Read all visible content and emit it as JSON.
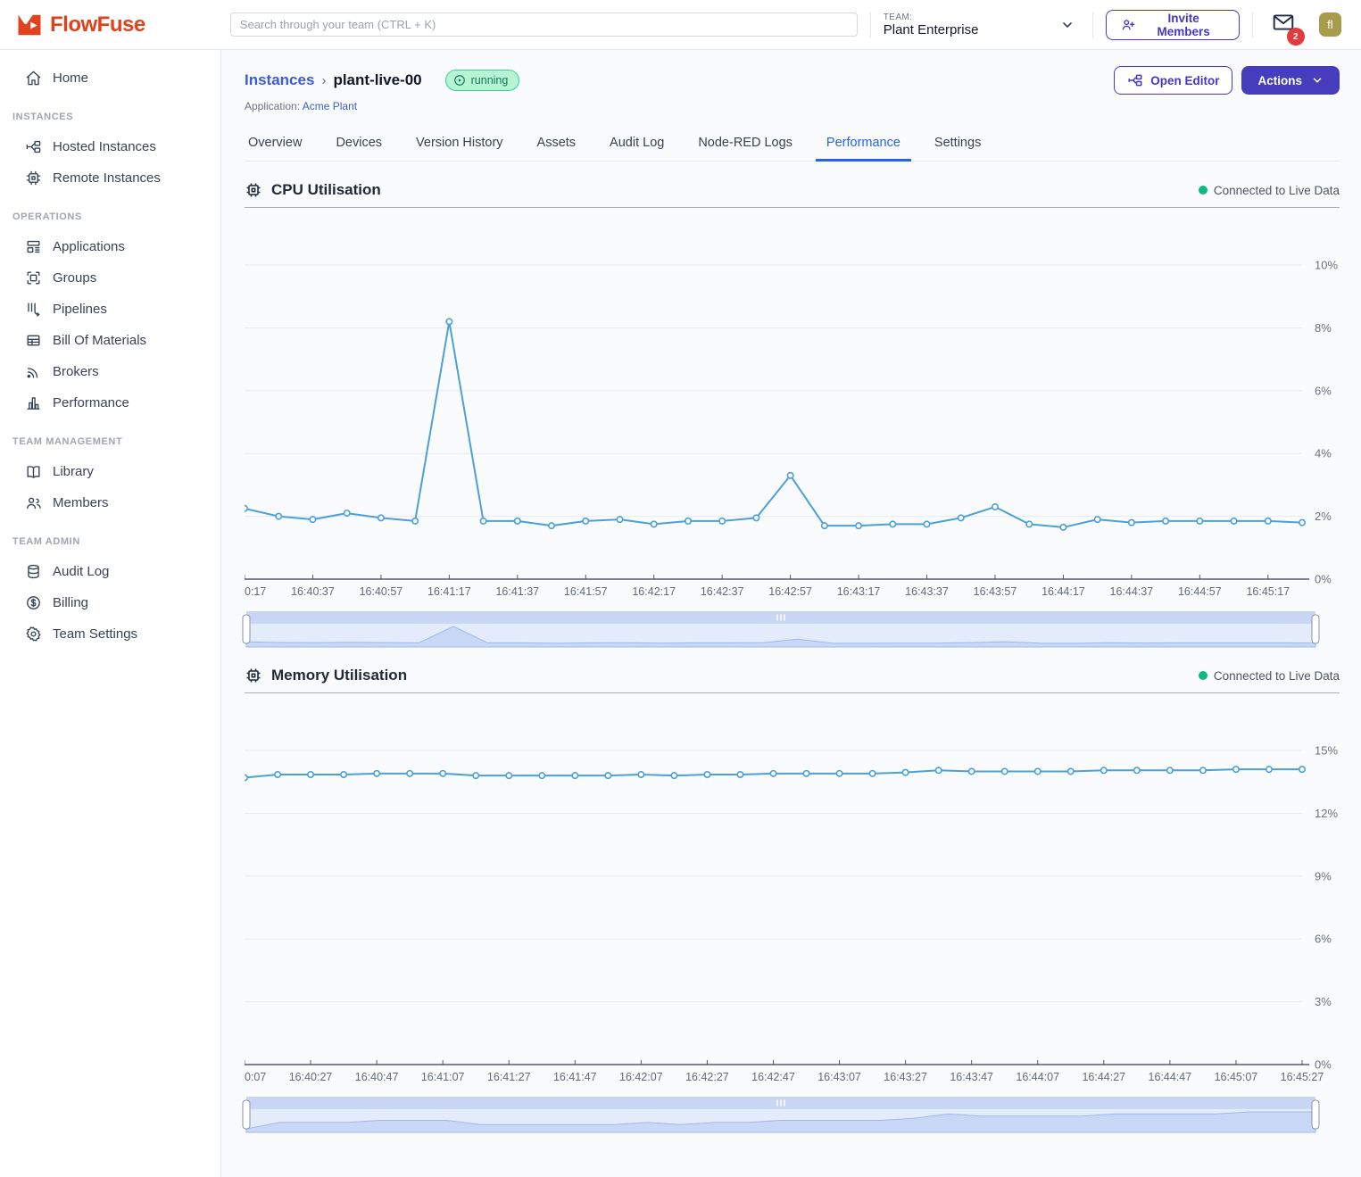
{
  "header": {
    "logo_text": "FlowFuse",
    "search": {
      "placeholder": "Search through your team (CTRL + K)"
    },
    "team": {
      "label": "TEAM:",
      "name": "Plant Enterprise"
    },
    "invite_button_label": "Invite Members",
    "notification_count": "2",
    "avatar_initials": "fl"
  },
  "sidebar": {
    "sections": [
      {
        "label": "",
        "items": [
          {
            "icon": "home",
            "label": "Home"
          }
        ]
      },
      {
        "label": "INSTANCES",
        "items": [
          {
            "icon": "hosted-instances",
            "label": "Hosted Instances"
          },
          {
            "icon": "remote-instances",
            "label": "Remote Instances"
          }
        ]
      },
      {
        "label": "OPERATIONS",
        "items": [
          {
            "icon": "applications",
            "label": "Applications"
          },
          {
            "icon": "groups",
            "label": "Groups"
          },
          {
            "icon": "pipelines",
            "label": "Pipelines"
          },
          {
            "icon": "bill-of-materials",
            "label": "Bill Of Materials"
          },
          {
            "icon": "brokers",
            "label": "Brokers"
          },
          {
            "icon": "performance",
            "label": "Performance"
          }
        ]
      },
      {
        "label": "TEAM MANAGEMENT",
        "items": [
          {
            "icon": "library",
            "label": "Library"
          },
          {
            "icon": "members",
            "label": "Members"
          }
        ]
      },
      {
        "label": "TEAM ADMIN",
        "items": [
          {
            "icon": "audit-log",
            "label": "Audit Log"
          },
          {
            "icon": "billing",
            "label": "Billing"
          },
          {
            "icon": "team-settings",
            "label": "Team Settings"
          }
        ]
      }
    ]
  },
  "page": {
    "breadcrumb_root": "Instances",
    "instance_name": "plant-live-00",
    "status": "running",
    "application_label": "Application:",
    "application_name": "Acme Plant",
    "open_editor_label": "Open Editor",
    "actions_label": "Actions",
    "tabs": [
      "Overview",
      "Devices",
      "Version History",
      "Assets",
      "Audit Log",
      "Node-RED Logs",
      "Performance",
      "Settings"
    ],
    "active_tab": "Performance"
  },
  "chart_data": [
    {
      "type": "line",
      "title": "CPU Utilisation",
      "status": "Connected to Live Data",
      "legend_position": "none",
      "grid": true,
      "ylim": [
        0,
        10.7
      ],
      "y_ticks": [
        {
          "label": "10%",
          "value": 10
        },
        {
          "label": "8%",
          "value": 8
        },
        {
          "label": "6%",
          "value": 6
        },
        {
          "label": "4%",
          "value": 4
        },
        {
          "label": "2%",
          "value": 2
        },
        {
          "label": "0%",
          "value": 0
        }
      ],
      "x_tick_labels": [
        "0:17",
        "16:40:37",
        "16:40:57",
        "16:41:17",
        "16:41:37",
        "16:41:57",
        "16:42:17",
        "16:42:37",
        "16:42:57",
        "16:43:17",
        "16:43:37",
        "16:43:57",
        "16:44:17",
        "16:44:37",
        "16:44:57",
        "16:45:17"
      ],
      "points_per_tick": 2,
      "values": [
        2.25,
        2.0,
        1.9,
        2.1,
        1.95,
        1.85,
        8.2,
        1.85,
        1.85,
        1.7,
        1.85,
        1.9,
        1.75,
        1.85,
        1.85,
        1.95,
        3.3,
        1.7,
        1.7,
        1.75,
        1.75,
        1.95,
        2.3,
        1.75,
        1.65,
        1.9,
        1.8,
        1.85,
        1.85,
        1.85,
        1.85,
        1.8
      ]
    },
    {
      "type": "line",
      "title": "Memory Utilisation",
      "status": "Connected to Live Data",
      "legend_position": "none",
      "grid": true,
      "ylim": [
        0,
        16
      ],
      "y_ticks": [
        {
          "label": "15%",
          "value": 15
        },
        {
          "label": "12%",
          "value": 12
        },
        {
          "label": "9%",
          "value": 9
        },
        {
          "label": "6%",
          "value": 6
        },
        {
          "label": "3%",
          "value": 3
        },
        {
          "label": "0%",
          "value": 0
        }
      ],
      "x_tick_labels": [
        "0:07",
        "16:40:27",
        "16:40:47",
        "16:41:07",
        "16:41:27",
        "16:41:47",
        "16:42:07",
        "16:42:27",
        "16:42:47",
        "16:43:07",
        "16:43:27",
        "16:43:47",
        "16:44:07",
        "16:44:27",
        "16:44:47",
        "16:45:07",
        "16:45:27"
      ],
      "points_per_tick": 2,
      "values": [
        13.7,
        13.85,
        13.85,
        13.85,
        13.9,
        13.9,
        13.9,
        13.8,
        13.8,
        13.8,
        13.8,
        13.8,
        13.85,
        13.8,
        13.85,
        13.85,
        13.9,
        13.9,
        13.9,
        13.9,
        13.95,
        14.05,
        14.0,
        14.0,
        14.0,
        14.0,
        14.05,
        14.05,
        14.05,
        14.05,
        14.1,
        14.1,
        14.1
      ]
    }
  ],
  "colors": {
    "brand_red": "#e0421b",
    "accent_indigo": "#4338ca",
    "link_blue": "#3b5bdb",
    "active_tab_blue": "#2563eb",
    "chart_line": "#4ba0d9",
    "live_green": "#10b981",
    "status_badge_bg": "#b7f4d4",
    "status_badge_text": "#117a56",
    "notification_red": "#e23b3b",
    "avatar_bg": "#a89b4d",
    "slider_bar": "#c9d6f6",
    "slider_area": "#e4ecfb"
  }
}
